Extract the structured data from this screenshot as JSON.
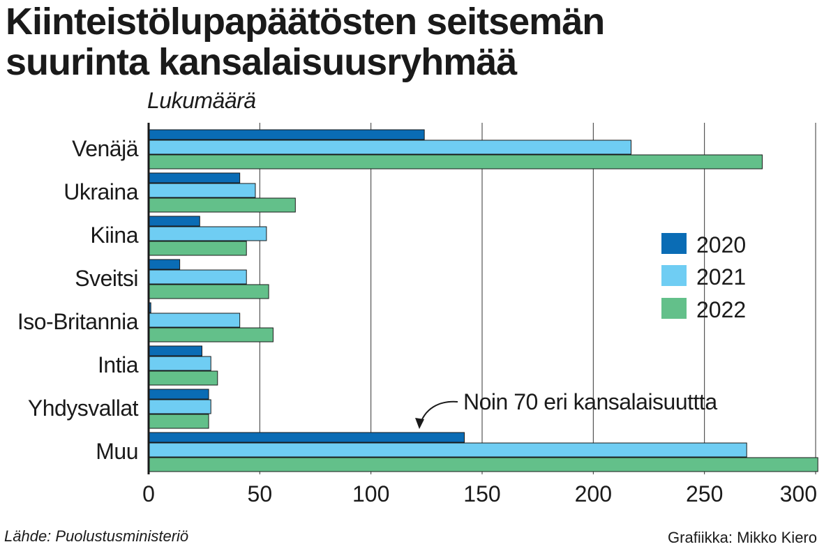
{
  "header": {
    "title_line1": "Kiinteistölupapäätösten seitsemän",
    "title_line2": "suurinta kansalaisuusryhmää",
    "unit_label": "Lukumäärä"
  },
  "footer": {
    "source": "Lähde: Puolustusministeriö",
    "credit": "Grafiikka: Mikko Kiero"
  },
  "annotation": {
    "text": "Noin 70 eri kansalaisuuttta",
    "target_category": "Muu"
  },
  "colors": {
    "2020": "#0a6cb5",
    "2021": "#6fcdf3",
    "2022": "#63c08a",
    "grid": "#333333",
    "text": "#1a1a1a"
  },
  "chart_data": {
    "type": "bar",
    "orientation": "horizontal",
    "title": "Kiinteistölupapäätösten seitsemän suurinta kansalaisuusryhmää",
    "xlabel": "Lukumäärä",
    "ylabel": "",
    "xlim": [
      0,
      300
    ],
    "xticks": [
      0,
      50,
      100,
      150,
      200,
      250,
      300
    ],
    "grid": true,
    "legend_position": "right",
    "categories": [
      "Venäjä",
      "Ukraina",
      "Kiina",
      "Sveitsi",
      "Iso-Britannia",
      "Intia",
      "Yhdysvallat",
      "Muu"
    ],
    "series": [
      {
        "name": "2020",
        "values": [
          124,
          41,
          23,
          14,
          1,
          24,
          27,
          142
        ]
      },
      {
        "name": "2021",
        "values": [
          217,
          48,
          53,
          44,
          41,
          28,
          28,
          269
        ]
      },
      {
        "name": "2022",
        "values": [
          276,
          66,
          44,
          54,
          56,
          31,
          27,
          301
        ]
      }
    ]
  }
}
